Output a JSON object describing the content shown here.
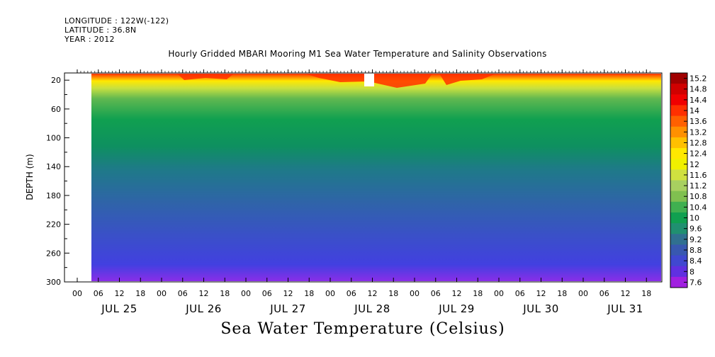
{
  "header": {
    "longitude": "LONGITUDE : 122W(-122)",
    "latitude": "LATITUDE : 36.8N",
    "year": "YEAR : 2012"
  },
  "chart_data": {
    "type": "heatmap",
    "title": "Hourly Gridded MBARI Mooring M1 Sea Water Temperature and Salinity Observations",
    "xlabel": "Sea Water Temperature (Celsius)",
    "ylabel": "DEPTH (m)",
    "y_ticks": [
      20,
      60,
      100,
      140,
      180,
      220,
      260,
      300
    ],
    "ylim": [
      300,
      10
    ],
    "x_hour_ticks": [
      "00",
      "06",
      "12",
      "18",
      "00",
      "06",
      "12",
      "18",
      "00",
      "06",
      "12",
      "18",
      "00",
      "06",
      "12",
      "18",
      "00",
      "06",
      "12",
      "18",
      "00",
      "06",
      "12",
      "18",
      "00",
      "06",
      "12",
      "18"
    ],
    "x_day_labels": [
      "JUL 25",
      "JUL 26",
      "JUL 27",
      "JUL 28",
      "JUL 29",
      "JUL 30",
      "JUL 31"
    ],
    "colorbar_ticks": [
      "15.2",
      "14.8",
      "14.4",
      "14",
      "13.6",
      "13.2",
      "12.8",
      "12.4",
      "12",
      "11.6",
      "11.2",
      "10.8",
      "10.4",
      "10",
      "9.6",
      "9.2",
      "8.8",
      "8.4",
      "8",
      "7.6"
    ],
    "colorbar_colors": [
      "#a00000",
      "#d00000",
      "#f00000",
      "#ff3000",
      "#ff6000",
      "#ff9000",
      "#ffc000",
      "#ffe800",
      "#f0f000",
      "#d0e040",
      "#a8d060",
      "#80c050",
      "#40b050",
      "#10a050",
      "#209070",
      "#307090",
      "#3858b0",
      "#4048d0",
      "#6030e0",
      "#a020e0"
    ],
    "temperature_profile": [
      {
        "depth": 10,
        "value": 14.4
      },
      {
        "depth": 15,
        "value": 12.4
      },
      {
        "depth": 20,
        "value": 11.6
      },
      {
        "depth": 30,
        "value": 10.8
      },
      {
        "depth": 50,
        "value": 10.4
      },
      {
        "depth": 80,
        "value": 10.0
      },
      {
        "depth": 120,
        "value": 9.6
      },
      {
        "depth": 160,
        "value": 9.2
      },
      {
        "depth": 220,
        "value": 8.8
      },
      {
        "depth": 270,
        "value": 8.4
      },
      {
        "depth": 300,
        "value": 8.0
      }
    ],
    "grid": false
  }
}
